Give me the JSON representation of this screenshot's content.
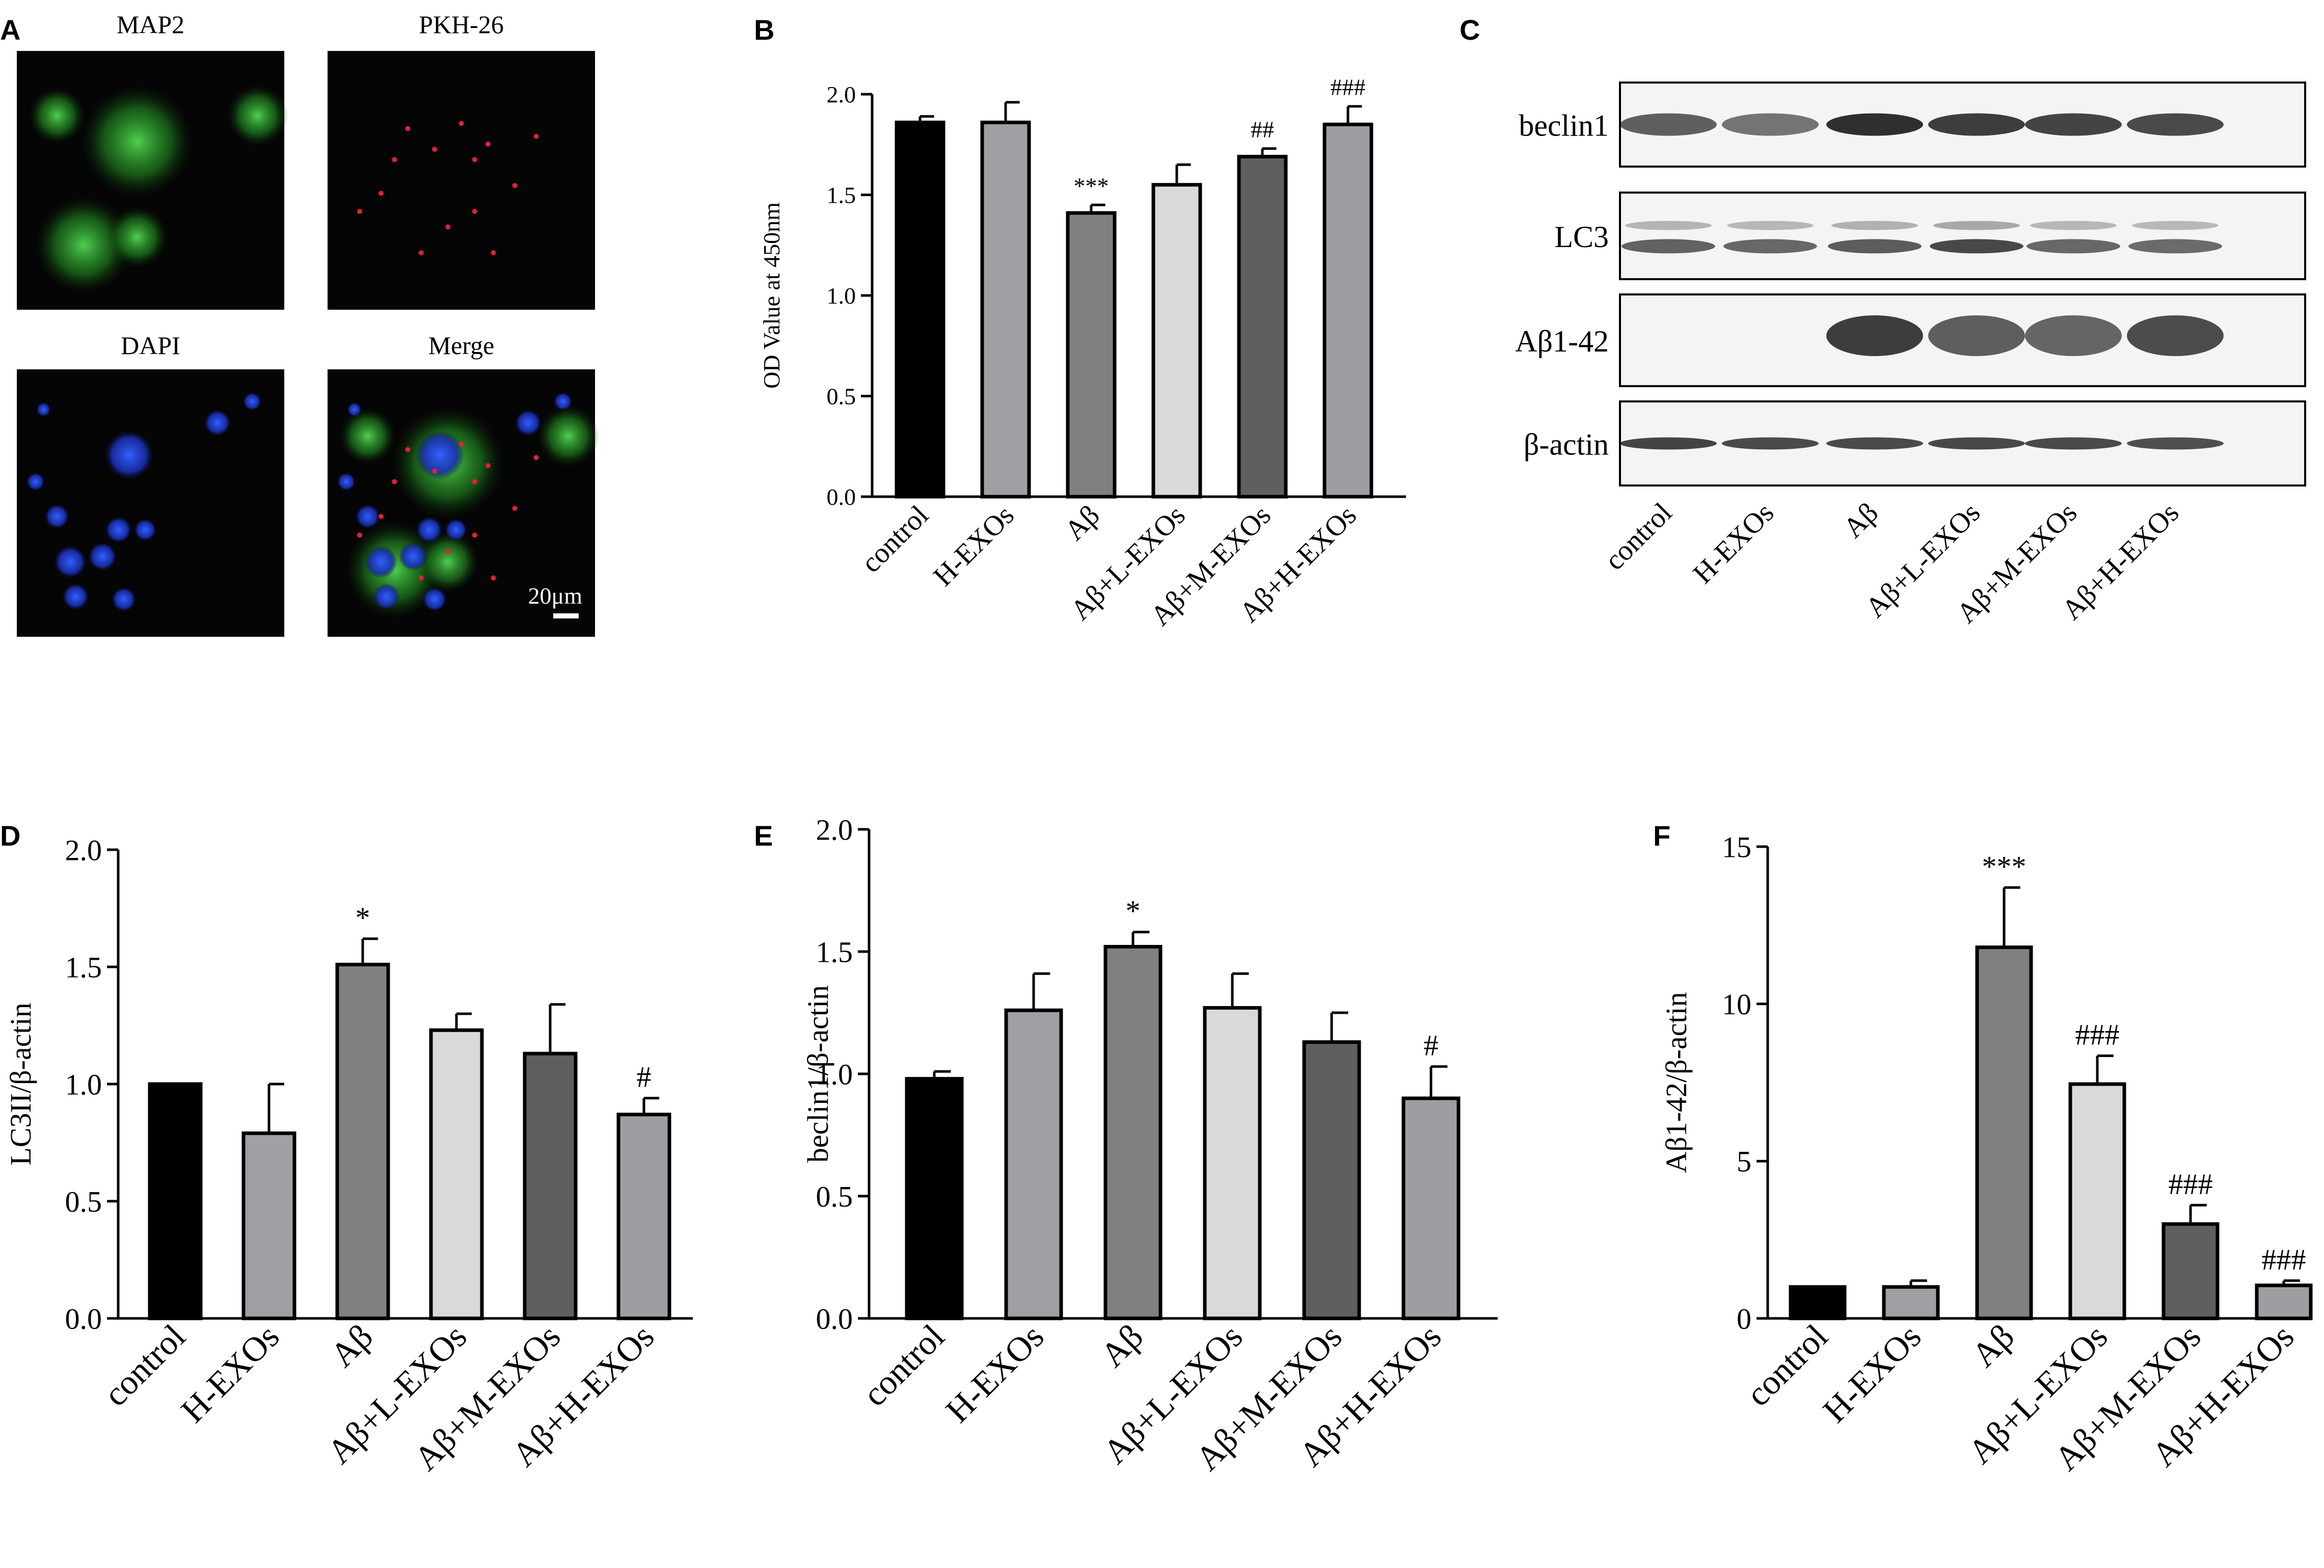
{
  "panels": {
    "A": {
      "letter": "A",
      "micrographs": [
        {
          "label": "MAP2",
          "kind": "map2"
        },
        {
          "label": "PKH-26",
          "kind": "pkh"
        },
        {
          "label": "DAPI",
          "kind": "dapi"
        },
        {
          "label": "Merge",
          "kind": "merge"
        }
      ],
      "scale_bar": "20μm"
    },
    "B": {
      "letter": "B"
    },
    "C": {
      "letter": "C",
      "blots": [
        {
          "label": "beclin1",
          "intensity": [
            0.72,
            0.62,
            0.95,
            0.88,
            0.85,
            0.82
          ],
          "bands": 1
        },
        {
          "label": "LC3",
          "intensity": [
            0.75,
            0.72,
            0.78,
            0.88,
            0.72,
            0.7
          ],
          "bands": 2
        },
        {
          "label": "Aβ1-42",
          "intensity": [
            0.0,
            0.0,
            1.0,
            0.82,
            0.78,
            0.92
          ],
          "bands": 1
        },
        {
          "label": "β-actin",
          "intensity": [
            0.85,
            0.82,
            0.82,
            0.83,
            0.82,
            0.8
          ],
          "bands": 1
        }
      ],
      "lanes": [
        "control",
        "H-EXOs",
        "Aβ",
        "Aβ+L-EXOs",
        "Aβ+M-EXOs",
        "Aβ+H-EXOs"
      ]
    },
    "D": {
      "letter": "D"
    },
    "E": {
      "letter": "E"
    },
    "F": {
      "letter": "F"
    }
  },
  "colors": {
    "black": "#000000",
    "gray_mid": "#a0a0a4",
    "gray_dark": "#808080",
    "gray_light": "#d9d9d9",
    "gray_darkest": "#5f5f5f",
    "gray_last": "#9e9ea2"
  },
  "chart_data": [
    {
      "panel": "B",
      "type": "bar",
      "categories": [
        "control",
        "H-EXOs",
        "Aβ",
        "Aβ+L-EXOs",
        "Aβ+M-EXOs",
        "Aβ+H-EXOs"
      ],
      "values": [
        1.86,
        1.86,
        1.41,
        1.55,
        1.69,
        1.85
      ],
      "errors": [
        0.03,
        0.1,
        0.04,
        0.1,
        0.04,
        0.09
      ],
      "annotations": [
        "",
        "",
        "***",
        "",
        "##",
        "###"
      ],
      "ylabel": "OD Value at 450nm",
      "ylim": [
        0,
        2.0
      ],
      "yticks": [
        "0.0",
        "0.5",
        "1.0",
        "1.5",
        "2.0"
      ]
    },
    {
      "panel": "D",
      "type": "bar",
      "categories": [
        "control",
        "H-EXOs",
        "Aβ",
        "Aβ+L-EXOs",
        "Aβ+M-EXOs",
        "Aβ+H-EXOs"
      ],
      "values": [
        1.0,
        0.79,
        1.51,
        1.23,
        1.13,
        0.87
      ],
      "errors": [
        0.0,
        0.21,
        0.11,
        0.07,
        0.21,
        0.07
      ],
      "annotations": [
        "",
        "",
        "*",
        "",
        "",
        "#"
      ],
      "ylabel": "LC3II/β-actin",
      "ylim": [
        0,
        2.0
      ],
      "yticks": [
        "0.0",
        "0.5",
        "1.0",
        "1.5",
        "2.0"
      ]
    },
    {
      "panel": "E",
      "type": "bar",
      "categories": [
        "control",
        "H-EXOs",
        "Aβ",
        "Aβ+L-EXOs",
        "Aβ+M-EXOs",
        "Aβ+H-EXOs"
      ],
      "values": [
        0.98,
        1.26,
        1.52,
        1.27,
        1.13,
        0.9
      ],
      "errors": [
        0.03,
        0.15,
        0.06,
        0.14,
        0.12,
        0.13
      ],
      "annotations": [
        "",
        "",
        "*",
        "",
        "",
        "#"
      ],
      "ylabel": "beclin1/β-actin",
      "ylim": [
        0,
        2.0
      ],
      "yticks": [
        "0.0",
        "0.5",
        "1.0",
        "1.5",
        "2.0"
      ]
    },
    {
      "panel": "F",
      "type": "bar",
      "categories": [
        "control",
        "H-EXOs",
        "Aβ",
        "Aβ+L-EXOs",
        "Aβ+M-EXOs",
        "Aβ+H-EXOs"
      ],
      "values": [
        1.0,
        1.0,
        11.8,
        7.45,
        3.0,
        1.05
      ],
      "errors": [
        0.0,
        0.2,
        1.9,
        0.9,
        0.6,
        0.15
      ],
      "annotations": [
        "",
        "",
        "***",
        "###",
        "###",
        "###"
      ],
      "ylabel": "Aβ1-42/β-actin",
      "ylim": [
        0,
        15
      ],
      "yticks": [
        "0",
        "5",
        "10",
        "15"
      ]
    }
  ]
}
